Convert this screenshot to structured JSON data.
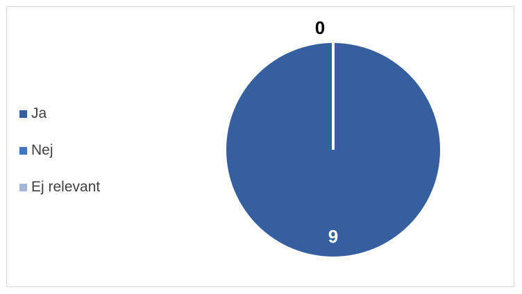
{
  "chart_data": {
    "type": "pie",
    "categories": [
      "Ja",
      "Nej",
      "Ej relevant"
    ],
    "values": [
      9,
      0,
      0
    ],
    "data_labels": [
      "9",
      "0",
      ""
    ],
    "colors": [
      "#365F9F",
      "#4472C4",
      "#A5B4D9"
    ],
    "legend_position": "left",
    "title": ""
  },
  "legend": {
    "items": [
      {
        "label": "Ja",
        "color": "#365F9F"
      },
      {
        "label": "Nej",
        "color": "#4472C4"
      },
      {
        "label": "Ej relevant",
        "color": "#A5B4D9"
      }
    ]
  },
  "labels": {
    "ja_value": "9",
    "nej_value": "0"
  }
}
